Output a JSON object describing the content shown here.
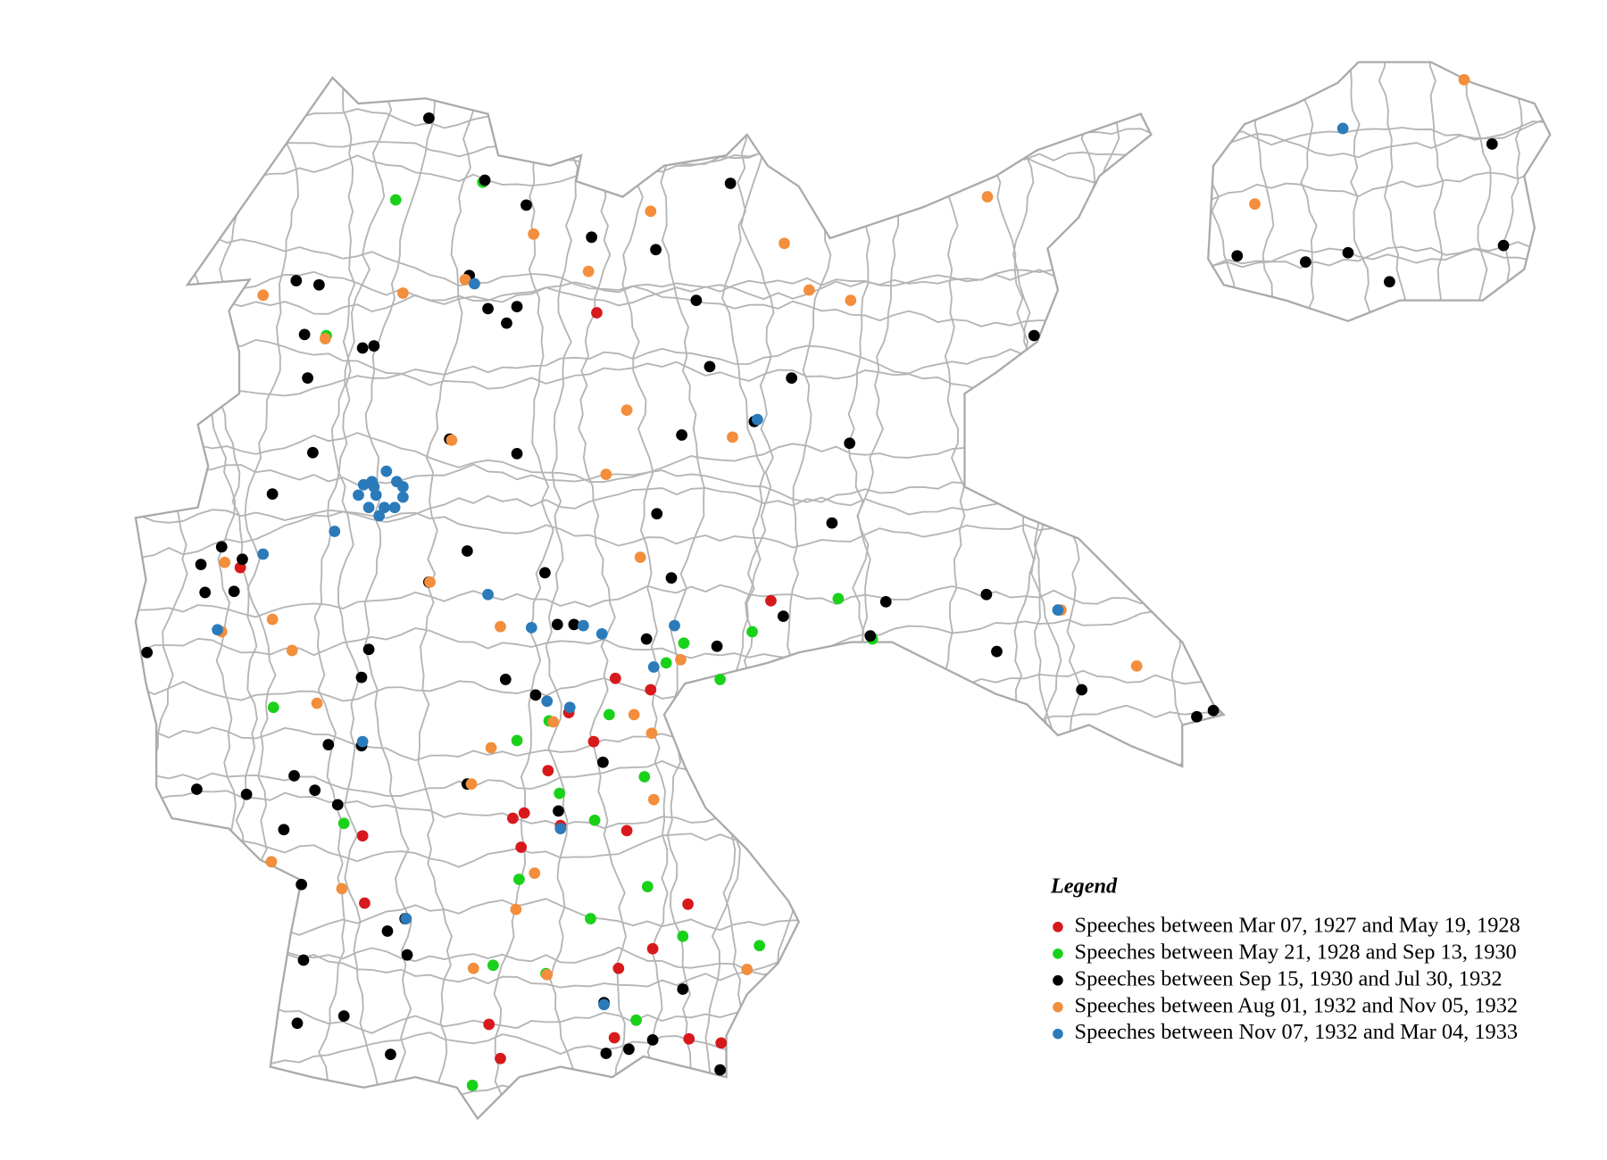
{
  "legend": {
    "title": "Legend",
    "items": [
      {
        "label": "Speeches between Mar 07, 1927 and May 19, 1928",
        "color": "#d7191c"
      },
      {
        "label": "Speeches between May 21, 1928 and Sep 13, 1930",
        "color": "#1ad11a"
      },
      {
        "label": "Speeches between Sep 15, 1930 and Jul 30, 1932",
        "color": "#000000"
      },
      {
        "label": "Speeches between Aug 01, 1932 and Nov 05, 1932",
        "color": "#f28e3c"
      },
      {
        "label": "Speeches between Nov 07, 1932 and Mar 04, 1933",
        "color": "#2b7bba"
      }
    ]
  }
}
